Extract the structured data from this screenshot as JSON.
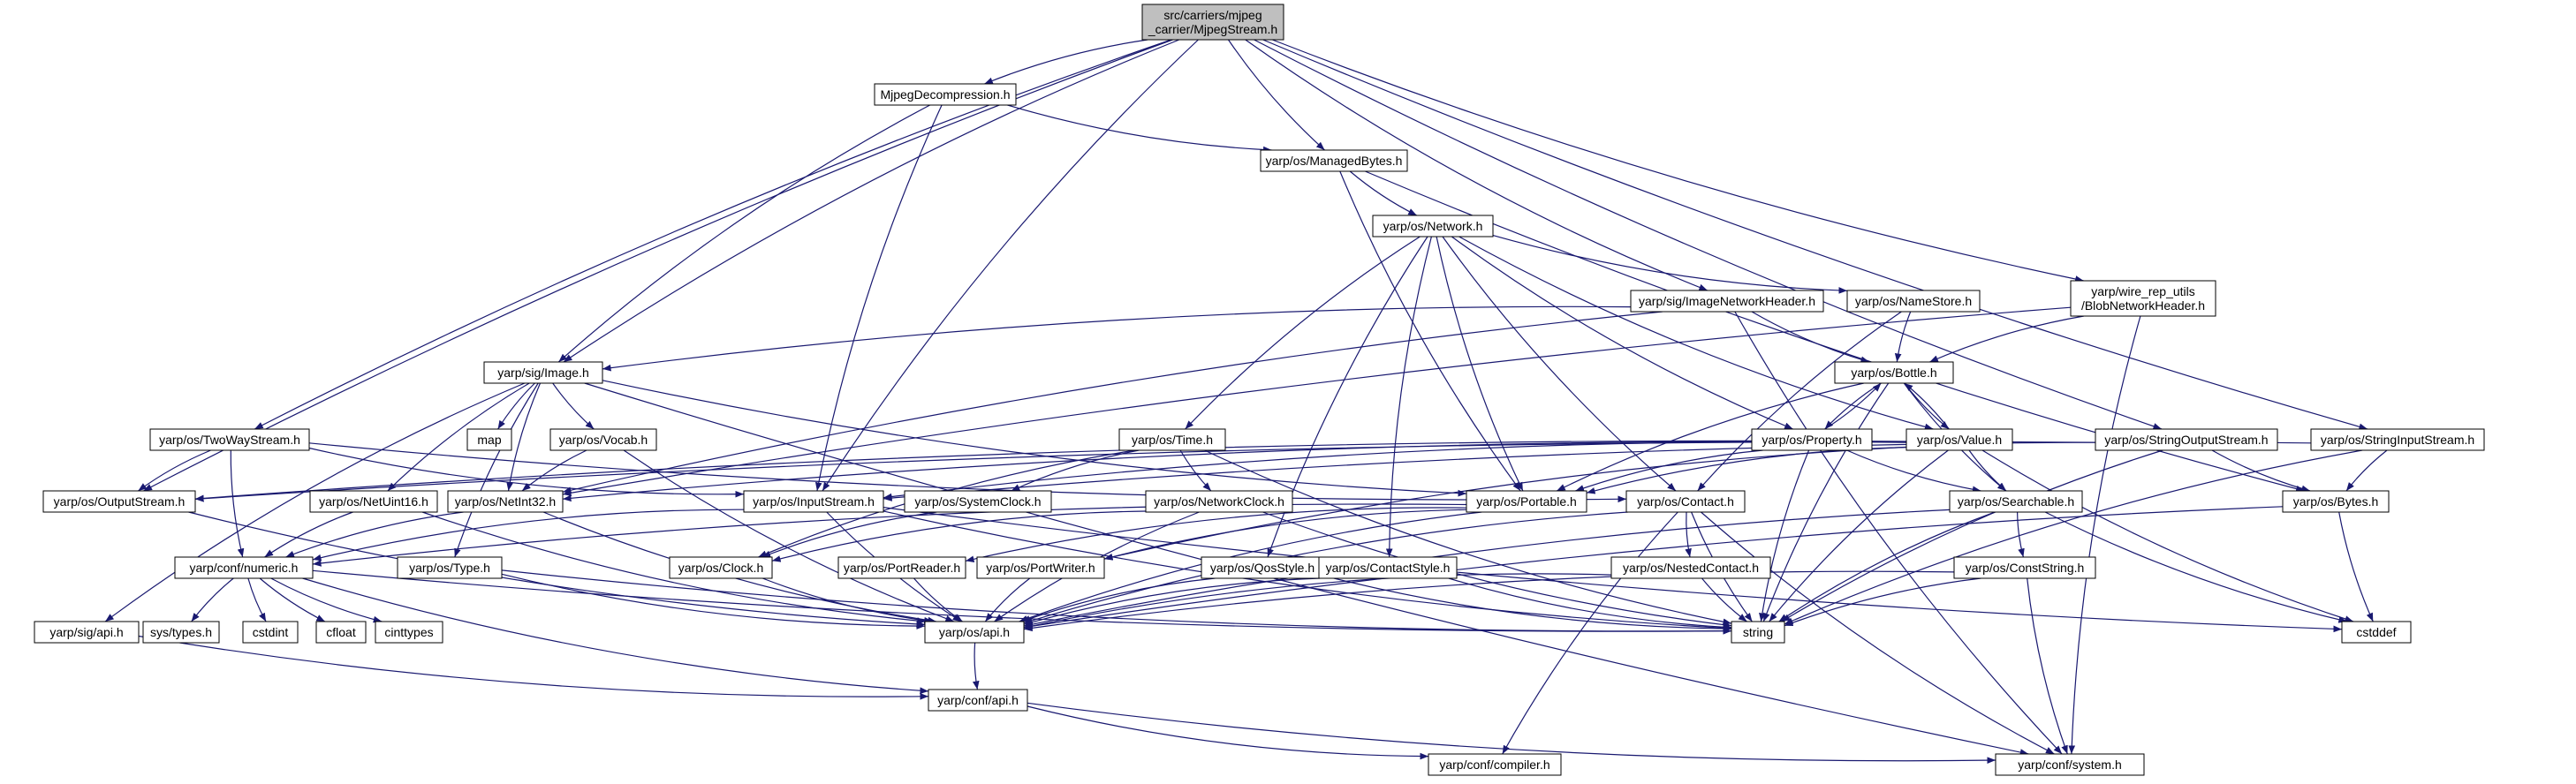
{
  "diagram": {
    "root": "mjpegstream",
    "colors": {
      "edge": "#191970",
      "node_fill": "#ffffff",
      "root_fill": "#bfbfbf",
      "node_border": "#000000",
      "external_border": "#bfbfbf",
      "external_text": "#7f7f7f"
    },
    "nodes": [
      {
        "id": "mjpegstream",
        "lines": [
          "src/carriers/mjpeg",
          "_carrier/MjpegStream.h"
        ],
        "kind": "root"
      },
      {
        "id": "mjpegdecomp",
        "lines": [
          "MjpegDecompression.h"
        ],
        "kind": "file"
      },
      {
        "id": "managedbytes",
        "lines": [
          "yarp/os/ManagedBytes.h"
        ],
        "kind": "file"
      },
      {
        "id": "network",
        "lines": [
          "yarp/os/Network.h"
        ],
        "kind": "file"
      },
      {
        "id": "imagenetheader",
        "lines": [
          "yarp/sig/ImageNetworkHeader.h"
        ],
        "kind": "file"
      },
      {
        "id": "namestore",
        "lines": [
          "yarp/os/NameStore.h"
        ],
        "kind": "file"
      },
      {
        "id": "blobnetheader",
        "lines": [
          "yarp/wire_rep_utils",
          "/BlobNetworkHeader.h"
        ],
        "kind": "file"
      },
      {
        "id": "image",
        "lines": [
          "yarp/sig/Image.h"
        ],
        "kind": "file"
      },
      {
        "id": "bottle",
        "lines": [
          "yarp/os/Bottle.h"
        ],
        "kind": "file"
      },
      {
        "id": "twowaystream",
        "lines": [
          "yarp/os/TwoWayStream.h"
        ],
        "kind": "file"
      },
      {
        "id": "map",
        "lines": [
          "map"
        ],
        "kind": "external"
      },
      {
        "id": "vocab",
        "lines": [
          "yarp/os/Vocab.h"
        ],
        "kind": "file"
      },
      {
        "id": "time",
        "lines": [
          "yarp/os/Time.h"
        ],
        "kind": "file"
      },
      {
        "id": "property",
        "lines": [
          "yarp/os/Property.h"
        ],
        "kind": "file"
      },
      {
        "id": "value",
        "lines": [
          "yarp/os/Value.h"
        ],
        "kind": "file"
      },
      {
        "id": "stringoutputstream",
        "lines": [
          "yarp/os/StringOutputStream.h"
        ],
        "kind": "file"
      },
      {
        "id": "stringinputstream",
        "lines": [
          "yarp/os/StringInputStream.h"
        ],
        "kind": "file"
      },
      {
        "id": "outputstream",
        "lines": [
          "yarp/os/OutputStream.h"
        ],
        "kind": "file"
      },
      {
        "id": "netuint16",
        "lines": [
          "yarp/os/NetUint16.h"
        ],
        "kind": "file"
      },
      {
        "id": "netint32",
        "lines": [
          "yarp/os/NetInt32.h"
        ],
        "kind": "file"
      },
      {
        "id": "inputstream",
        "lines": [
          "yarp/os/InputStream.h"
        ],
        "kind": "file"
      },
      {
        "id": "systemclock",
        "lines": [
          "yarp/os/SystemClock.h"
        ],
        "kind": "file"
      },
      {
        "id": "networkclock",
        "lines": [
          "yarp/os/NetworkClock.h"
        ],
        "kind": "file"
      },
      {
        "id": "portable",
        "lines": [
          "yarp/os/Portable.h"
        ],
        "kind": "file"
      },
      {
        "id": "contact",
        "lines": [
          "yarp/os/Contact.h"
        ],
        "kind": "file"
      },
      {
        "id": "searchable",
        "lines": [
          "yarp/os/Searchable.h"
        ],
        "kind": "file"
      },
      {
        "id": "bytes",
        "lines": [
          "yarp/os/Bytes.h"
        ],
        "kind": "file"
      },
      {
        "id": "numeric",
        "lines": [
          "yarp/conf/numeric.h"
        ],
        "kind": "file"
      },
      {
        "id": "type",
        "lines": [
          "yarp/os/Type.h"
        ],
        "kind": "file"
      },
      {
        "id": "clock",
        "lines": [
          "yarp/os/Clock.h"
        ],
        "kind": "file"
      },
      {
        "id": "portreader",
        "lines": [
          "yarp/os/PortReader.h"
        ],
        "kind": "file"
      },
      {
        "id": "portwriter",
        "lines": [
          "yarp/os/PortWriter.h"
        ],
        "kind": "file"
      },
      {
        "id": "qosstyle",
        "lines": [
          "yarp/os/QosStyle.h"
        ],
        "kind": "file"
      },
      {
        "id": "contactstyle",
        "lines": [
          "yarp/os/ContactStyle.h"
        ],
        "kind": "file"
      },
      {
        "id": "nestedcontact",
        "lines": [
          "yarp/os/NestedContact.h"
        ],
        "kind": "file"
      },
      {
        "id": "conststring",
        "lines": [
          "yarp/os/ConstString.h"
        ],
        "kind": "file"
      },
      {
        "id": "sigapi",
        "lines": [
          "yarp/sig/api.h"
        ],
        "kind": "file"
      },
      {
        "id": "systypes",
        "lines": [
          "sys/types.h"
        ],
        "kind": "external"
      },
      {
        "id": "cstdint",
        "lines": [
          "cstdint"
        ],
        "kind": "external"
      },
      {
        "id": "cfloat",
        "lines": [
          "cfloat"
        ],
        "kind": "external"
      },
      {
        "id": "cinttypes",
        "lines": [
          "cinttypes"
        ],
        "kind": "external"
      },
      {
        "id": "osapi",
        "lines": [
          "yarp/os/api.h"
        ],
        "kind": "file"
      },
      {
        "id": "string",
        "lines": [
          "string"
        ],
        "kind": "external"
      },
      {
        "id": "cstddef",
        "lines": [
          "cstddef"
        ],
        "kind": "external"
      },
      {
        "id": "confapi",
        "lines": [
          "yarp/conf/api.h"
        ],
        "kind": "file"
      },
      {
        "id": "compiler",
        "lines": [
          "yarp/conf/compiler.h"
        ],
        "kind": "file"
      },
      {
        "id": "system",
        "lines": [
          "yarp/conf/system.h"
        ],
        "kind": "file"
      }
    ],
    "edges": [
      [
        "mjpegstream",
        "mjpegdecomp"
      ],
      [
        "mjpegstream",
        "managedbytes"
      ],
      [
        "mjpegstream",
        "imagenetheader"
      ],
      [
        "mjpegstream",
        "blobnetheader"
      ],
      [
        "mjpegstream",
        "image"
      ],
      [
        "mjpegstream",
        "twowaystream"
      ],
      [
        "mjpegstream",
        "outputstream"
      ],
      [
        "mjpegstream",
        "inputstream"
      ],
      [
        "mjpegstream",
        "stringoutputstream"
      ],
      [
        "mjpegstream",
        "stringinputstream"
      ],
      [
        "mjpegdecomp",
        "managedbytes"
      ],
      [
        "mjpegdecomp",
        "image"
      ],
      [
        "mjpegdecomp",
        "inputstream"
      ],
      [
        "managedbytes",
        "network"
      ],
      [
        "managedbytes",
        "bytes"
      ],
      [
        "managedbytes",
        "portable"
      ],
      [
        "network",
        "namestore"
      ],
      [
        "network",
        "time"
      ],
      [
        "network",
        "property"
      ],
      [
        "network",
        "value"
      ],
      [
        "network",
        "portable"
      ],
      [
        "network",
        "contact"
      ],
      [
        "network",
        "qosstyle"
      ],
      [
        "network",
        "contactstyle"
      ],
      [
        "imagenetheader",
        "bottle"
      ],
      [
        "imagenetheader",
        "image"
      ],
      [
        "imagenetheader",
        "netint32"
      ],
      [
        "imagenetheader",
        "system"
      ],
      [
        "namestore",
        "bottle"
      ],
      [
        "namestore",
        "contact"
      ],
      [
        "blobnetheader",
        "bottle"
      ],
      [
        "blobnetheader",
        "netint32"
      ],
      [
        "blobnetheader",
        "system"
      ],
      [
        "image",
        "map"
      ],
      [
        "image",
        "vocab"
      ],
      [
        "image",
        "netuint16"
      ],
      [
        "image",
        "netint32"
      ],
      [
        "image",
        "type"
      ],
      [
        "image",
        "sigapi"
      ],
      [
        "image",
        "portable"
      ],
      [
        "image",
        "system"
      ],
      [
        "bottle",
        "property"
      ],
      [
        "bottle",
        "value"
      ],
      [
        "bottle",
        "portable"
      ],
      [
        "bottle",
        "searchable"
      ],
      [
        "bottle",
        "string"
      ],
      [
        "twowaystream",
        "outputstream"
      ],
      [
        "twowaystream",
        "inputstream"
      ],
      [
        "twowaystream",
        "numeric"
      ],
      [
        "twowaystream",
        "contact"
      ],
      [
        "vocab",
        "netint32"
      ],
      [
        "vocab",
        "osapi"
      ],
      [
        "time",
        "systemclock"
      ],
      [
        "time",
        "networkclock"
      ],
      [
        "time",
        "clock"
      ],
      [
        "time",
        "string"
      ],
      [
        "property",
        "bottle"
      ],
      [
        "property",
        "searchable"
      ],
      [
        "property",
        "portable"
      ],
      [
        "property",
        "string"
      ],
      [
        "value",
        "bottle"
      ],
      [
        "value",
        "searchable"
      ],
      [
        "value",
        "portable"
      ],
      [
        "value",
        "string"
      ],
      [
        "value",
        "cstddef"
      ],
      [
        "value",
        "inputstream"
      ],
      [
        "value",
        "outputstream"
      ],
      [
        "value",
        "netint32"
      ],
      [
        "value",
        "portwriter"
      ],
      [
        "stringoutputstream",
        "outputstream"
      ],
      [
        "stringoutputstream",
        "bytes"
      ],
      [
        "stringoutputstream",
        "string"
      ],
      [
        "stringinputstream",
        "inputstream"
      ],
      [
        "stringinputstream",
        "bytes"
      ],
      [
        "stringinputstream",
        "string"
      ],
      [
        "outputstream",
        "osapi"
      ],
      [
        "netuint16",
        "numeric"
      ],
      [
        "netuint16",
        "osapi"
      ],
      [
        "netint32",
        "numeric"
      ],
      [
        "netint32",
        "osapi"
      ],
      [
        "inputstream",
        "numeric"
      ],
      [
        "inputstream",
        "osapi"
      ],
      [
        "inputstream",
        "string"
      ],
      [
        "inputstream",
        "cstddef"
      ],
      [
        "systemclock",
        "clock"
      ],
      [
        "networkclock",
        "clock"
      ],
      [
        "networkclock",
        "osapi"
      ],
      [
        "networkclock",
        "string"
      ],
      [
        "portable",
        "portreader"
      ],
      [
        "portable",
        "portwriter"
      ],
      [
        "portable",
        "numeric"
      ],
      [
        "portable",
        "osapi"
      ],
      [
        "contact",
        "nestedcontact"
      ],
      [
        "contact",
        "string"
      ],
      [
        "contact",
        "system"
      ],
      [
        "contact",
        "osapi"
      ],
      [
        "contact",
        "compiler"
      ],
      [
        "searchable",
        "conststring"
      ],
      [
        "searchable",
        "cstddef"
      ],
      [
        "searchable",
        "osapi"
      ],
      [
        "searchable",
        "string"
      ],
      [
        "bytes",
        "osapi"
      ],
      [
        "bytes",
        "cstddef"
      ],
      [
        "numeric",
        "systypes"
      ],
      [
        "numeric",
        "cstdint"
      ],
      [
        "numeric",
        "cfloat"
      ],
      [
        "numeric",
        "cinttypes"
      ],
      [
        "numeric",
        "confapi"
      ],
      [
        "numeric",
        "string"
      ],
      [
        "type",
        "osapi"
      ],
      [
        "type",
        "string"
      ],
      [
        "clock",
        "osapi"
      ],
      [
        "portreader",
        "osapi"
      ],
      [
        "portwriter",
        "osapi"
      ],
      [
        "qosstyle",
        "osapi"
      ],
      [
        "qosstyle",
        "string"
      ],
      [
        "contactstyle",
        "osapi"
      ],
      [
        "contactstyle",
        "string"
      ],
      [
        "nestedcontact",
        "osapi"
      ],
      [
        "nestedcontact",
        "string"
      ],
      [
        "conststring",
        "osapi"
      ],
      [
        "conststring",
        "string"
      ],
      [
        "conststring",
        "system"
      ],
      [
        "sigapi",
        "confapi"
      ],
      [
        "osapi",
        "confapi"
      ],
      [
        "confapi",
        "compiler"
      ],
      [
        "confapi",
        "system"
      ]
    ]
  }
}
